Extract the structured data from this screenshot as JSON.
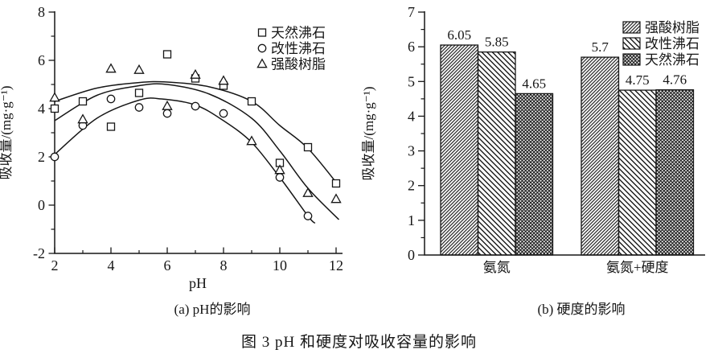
{
  "figure": {
    "caption": "图 3  pH 和硬度对吸收容量的影响",
    "subcaption_a": "(a) pH的影响",
    "subcaption_b": "(b) 硬度的影响",
    "ink_color": "#161616",
    "background": "#ffffff"
  },
  "chart_data": [
    {
      "id": "ph-effect",
      "type": "scatter",
      "title": "(a) pH的影响",
      "xlabel": "pH",
      "ylabel": "吸收量/(mg·g⁻¹)",
      "xlim": [
        2,
        12
      ],
      "ylim": [
        -2,
        8
      ],
      "xticks": [
        2,
        4,
        6,
        8,
        10,
        12
      ],
      "xticks_minor": [
        3,
        5,
        7,
        9,
        11
      ],
      "yticks": [
        -2,
        0,
        2,
        4,
        6,
        8
      ],
      "yticks_minor": [
        -1,
        1,
        3,
        5,
        7
      ],
      "grid": false,
      "legend_position": "top-right",
      "series": [
        {
          "name": "天然沸石",
          "marker": "square",
          "points": [
            [
              2,
              4.0
            ],
            [
              3,
              4.3
            ],
            [
              4,
              3.25
            ],
            [
              5,
              4.65
            ],
            [
              6,
              6.25
            ],
            [
              7,
              5.25
            ],
            [
              8,
              4.95
            ],
            [
              9,
              4.3
            ],
            [
              10,
              1.75
            ],
            [
              11,
              2.4
            ],
            [
              12,
              0.9
            ]
          ]
        },
        {
          "name": "改性沸石",
          "marker": "circle",
          "points": [
            [
              2,
              2.0
            ],
            [
              3,
              3.3
            ],
            [
              4,
              4.4
            ],
            [
              5,
              4.05
            ],
            [
              6,
              3.8
            ],
            [
              7,
              4.1
            ],
            [
              8,
              3.8
            ],
            [
              10,
              1.15
            ],
            [
              11,
              -0.45
            ]
          ]
        },
        {
          "name": "强酸树脂",
          "marker": "triangle",
          "points": [
            [
              2,
              4.45
            ],
            [
              3,
              3.55
            ],
            [
              4,
              5.65
            ],
            [
              5,
              5.6
            ],
            [
              6,
              4.1
            ],
            [
              7,
              5.4
            ],
            [
              8,
              5.15
            ],
            [
              9,
              2.65
            ],
            [
              10,
              1.45
            ],
            [
              11,
              0.5
            ],
            [
              12,
              0.25
            ]
          ]
        }
      ],
      "fit_curves": [
        {
          "series": "天然沸石",
          "points": [
            [
              2,
              4.3
            ],
            [
              3.5,
              4.85
            ],
            [
              5,
              5.08
            ],
            [
              6,
              5.1
            ],
            [
              7.5,
              4.9
            ],
            [
              9,
              4.3
            ],
            [
              10,
              3.3
            ],
            [
              11,
              2.35
            ],
            [
              12.1,
              0.8
            ]
          ]
        },
        {
          "series": "强酸树脂",
          "points": [
            [
              2,
              3.5
            ],
            [
              3.5,
              4.55
            ],
            [
              5,
              4.95
            ],
            [
              6,
              5.0
            ],
            [
              7.5,
              4.6
            ],
            [
              9,
              3.6
            ],
            [
              10,
              2.25
            ],
            [
              11,
              0.7
            ],
            [
              12.1,
              -0.6
            ]
          ]
        },
        {
          "series": "改性沸石",
          "points": [
            [
              2,
              2.1
            ],
            [
              3.5,
              3.6
            ],
            [
              5,
              4.35
            ],
            [
              5.8,
              4.4
            ],
            [
              7,
              4.15
            ],
            [
              8,
              3.5
            ],
            [
              9,
              2.6
            ],
            [
              10,
              1.15
            ],
            [
              11,
              -0.45
            ],
            [
              11.25,
              -0.75
            ]
          ]
        }
      ]
    },
    {
      "id": "hardness-effect",
      "type": "bar",
      "title": "(b) 硬度的影响",
      "ylabel": "吸收量/(mg·g⁻¹)",
      "ylim": [
        0,
        7
      ],
      "yticks": [
        0,
        1,
        2,
        3,
        4,
        5,
        6,
        7
      ],
      "grid": false,
      "categories": [
        "氨氮",
        "氨氮+硬度"
      ],
      "legend_position": "top-right",
      "series": [
        {
          "name": "强酸树脂",
          "hatch": "diagonal-dense",
          "values": [
            6.05,
            5.7
          ],
          "labels": [
            "6.05",
            "5.7"
          ]
        },
        {
          "name": "改性沸石",
          "hatch": "backslash",
          "values": [
            5.85,
            4.75
          ],
          "labels": [
            "5.85",
            "4.75"
          ]
        },
        {
          "name": "天然沸石",
          "hatch": "crosshatch",
          "values": [
            4.65,
            4.76
          ],
          "labels": [
            "4.65",
            "4.76"
          ]
        }
      ]
    }
  ]
}
